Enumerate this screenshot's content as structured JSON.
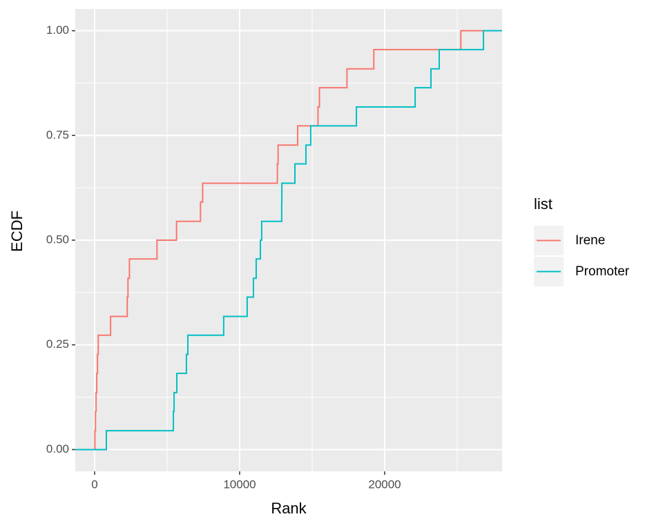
{
  "chart_data": {
    "type": "step",
    "x_label": "Rank",
    "y_label": "ECDF",
    "legend_title": "list",
    "xlim": [
      -1333,
      28095
    ],
    "ylim": [
      -0.052,
      1.052
    ],
    "xticks": [
      0,
      10000,
      20000
    ],
    "yticks": [
      {
        "value": 0,
        "label": "0.00"
      },
      {
        "value": 0.25,
        "label": "0.25"
      },
      {
        "value": 0.5,
        "label": "0.50"
      },
      {
        "value": 0.75,
        "label": "0.75"
      },
      {
        "value": 1,
        "label": "1.00"
      }
    ],
    "xminor": [
      5000,
      15000,
      25000
    ],
    "yminor": [
      0.125,
      0.375,
      0.625,
      0.875
    ],
    "grid": true,
    "legend": "right",
    "series": [
      {
        "name": "Irene",
        "color": "#F8766D",
        "x": [
          20,
          60,
          100,
          150,
          200,
          250,
          1100,
          2250,
          2300,
          2400,
          4300,
          5650,
          7300,
          7450,
          12600,
          12650,
          14000,
          15400,
          15500,
          17400,
          19250,
          25250
        ],
        "values": [
          0.045,
          0.091,
          0.136,
          0.182,
          0.227,
          0.273,
          0.318,
          0.364,
          0.409,
          0.455,
          0.5,
          0.545,
          0.591,
          0.636,
          0.682,
          0.727,
          0.773,
          0.818,
          0.864,
          0.909,
          0.955,
          1
        ]
      },
      {
        "name": "Promoter",
        "color": "#00BFC4",
        "x": [
          810,
          5430,
          5480,
          5670,
          6330,
          6430,
          8900,
          10520,
          10950,
          11140,
          11430,
          11520,
          12900,
          12910,
          13810,
          14570,
          14900,
          18050,
          22100,
          23190,
          23760,
          26810
        ],
        "values": [
          0.045,
          0.091,
          0.136,
          0.182,
          0.227,
          0.273,
          0.318,
          0.364,
          0.409,
          0.455,
          0.5,
          0.545,
          0.591,
          0.636,
          0.682,
          0.727,
          0.773,
          0.818,
          0.864,
          0.909,
          0.955,
          1
        ]
      }
    ]
  }
}
